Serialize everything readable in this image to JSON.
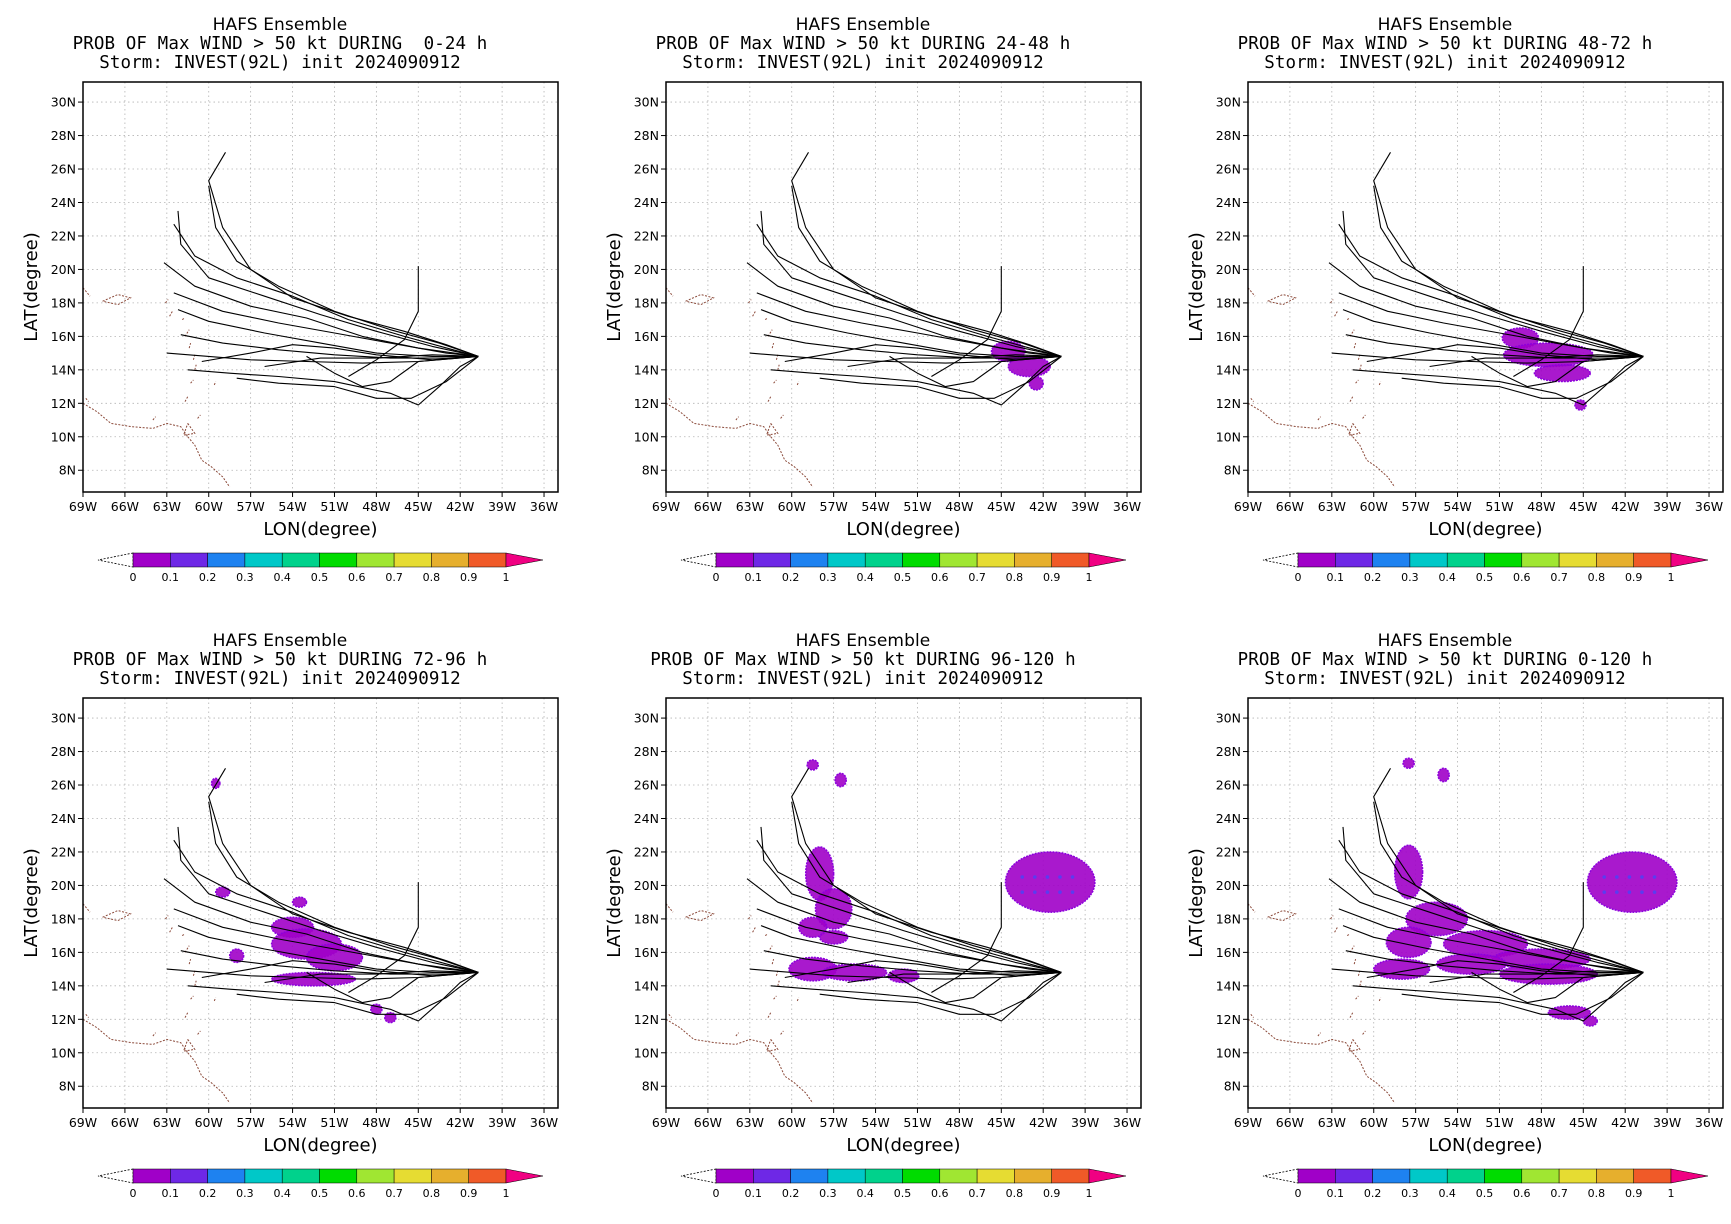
{
  "panels": [
    {
      "title": "HAFS Ensemble",
      "subtitle": "PROB OF Max WIND > 50 kt DURING  0-24 h",
      "storm": "Storm: INVEST(92L) init 2024090912"
    },
    {
      "title": "HAFS Ensemble",
      "subtitle": "PROB OF Max WIND > 50 kt DURING 24-48 h",
      "storm": "Storm: INVEST(92L) init 2024090912"
    },
    {
      "title": "HAFS Ensemble",
      "subtitle": "PROB OF Max WIND > 50 kt DURING 48-72 h",
      "storm": "Storm: INVEST(92L) init 2024090912"
    },
    {
      "title": "HAFS Ensemble",
      "subtitle": "PROB OF Max WIND > 50 kt DURING 72-96 h",
      "storm": "Storm: INVEST(92L) init 2024090912"
    },
    {
      "title": "HAFS Ensemble",
      "subtitle": "PROB OF Max WIND > 50 kt DURING 96-120 h",
      "storm": "Storm: INVEST(92L) init 2024090912"
    },
    {
      "title": "HAFS Ensemble",
      "subtitle": "PROB OF Max WIND > 50 kt DURING 0-120 h",
      "storm": "Storm: INVEST(92L) init 2024090912"
    }
  ],
  "axes": {
    "xlabel": "LON(degree)",
    "ylabel": "LAT(degree)",
    "lon_ticks": [
      "69W",
      "66W",
      "63W",
      "60W",
      "57W",
      "54W",
      "51W",
      "48W",
      "45W",
      "42W",
      "39W",
      "36W"
    ],
    "lat_ticks": [
      "8N",
      "10N",
      "12N",
      "14N",
      "16N",
      "18N",
      "20N",
      "22N",
      "24N",
      "26N",
      "28N",
      "30N"
    ],
    "lon_range": [
      -69,
      -35
    ],
    "lat_range": [
      6.7,
      31.2
    ]
  },
  "colorbar": {
    "labels": [
      "0",
      "0.1",
      "0.2",
      "0.3",
      "0.4",
      "0.5",
      "0.6",
      "0.7",
      "0.8",
      "0.9",
      "1"
    ],
    "colors": [
      "#a000c8",
      "#6e28e6",
      "#1e82f0",
      "#00c8c8",
      "#00d28c",
      "#00dc00",
      "#a0e632",
      "#e6dc32",
      "#e6af2d",
      "#f05a28",
      "#fa3c3c",
      "#f00082"
    ]
  },
  "chart_data": {
    "type": "map",
    "tracks_lonlat": [
      [
        [
          -58.8,
          27.0
        ],
        [
          -60.0,
          25.3
        ],
        [
          -59.0,
          22.5
        ],
        [
          -57.0,
          20.0
        ],
        [
          -54.0,
          18.3
        ],
        [
          -50.0,
          17.2
        ],
        [
          -46.0,
          16.3
        ],
        [
          -43.0,
          15.5
        ],
        [
          -40.7,
          14.8
        ]
      ],
      [
        [
          -60.0,
          25.0
        ],
        [
          -59.5,
          22.5
        ],
        [
          -58.0,
          20.5
        ],
        [
          -55.0,
          19.0
        ],
        [
          -51.0,
          17.5
        ],
        [
          -47.0,
          16.4
        ],
        [
          -43.5,
          15.6
        ],
        [
          -40.7,
          14.8
        ]
      ],
      [
        [
          -62.2,
          23.5
        ],
        [
          -62.0,
          21.5
        ],
        [
          -60.0,
          19.5
        ],
        [
          -56.0,
          18.4
        ],
        [
          -52.0,
          17.3
        ],
        [
          -48.0,
          16.3
        ],
        [
          -44.0,
          15.4
        ],
        [
          -40.7,
          14.8
        ]
      ],
      [
        [
          -62.5,
          22.7
        ],
        [
          -61.0,
          20.8
        ],
        [
          -58.0,
          19.5
        ],
        [
          -54.0,
          18.4
        ],
        [
          -50.0,
          17.0
        ],
        [
          -46.0,
          16.0
        ],
        [
          -42.5,
          15.2
        ],
        [
          -40.7,
          14.8
        ]
      ],
      [
        [
          -63.2,
          20.4
        ],
        [
          -61.0,
          19.0
        ],
        [
          -57.0,
          17.8
        ],
        [
          -53.0,
          17.1
        ],
        [
          -49.0,
          16.0
        ],
        [
          -45.0,
          15.3
        ],
        [
          -40.7,
          14.8
        ]
      ],
      [
        [
          -62.5,
          18.6
        ],
        [
          -59.0,
          17.5
        ],
        [
          -55.0,
          16.8
        ],
        [
          -51.0,
          16.2
        ],
        [
          -47.0,
          15.6
        ],
        [
          -43.0,
          15.0
        ],
        [
          -40.7,
          14.8
        ]
      ],
      [
        [
          -62.2,
          17.6
        ],
        [
          -60.0,
          16.9
        ],
        [
          -56.0,
          16.2
        ],
        [
          -52.0,
          15.6
        ],
        [
          -48.0,
          15.0
        ],
        [
          -44.0,
          14.8
        ],
        [
          -40.7,
          14.8
        ]
      ],
      [
        [
          -62.0,
          16.1
        ],
        [
          -59.0,
          15.6
        ],
        [
          -55.0,
          15.2
        ],
        [
          -51.0,
          14.9
        ],
        [
          -47.0,
          14.7
        ],
        [
          -43.0,
          14.7
        ],
        [
          -40.7,
          14.8
        ]
      ],
      [
        [
          -63.0,
          15.0
        ],
        [
          -60.0,
          14.8
        ],
        [
          -57.0,
          14.6
        ],
        [
          -53.0,
          14.5
        ],
        [
          -49.0,
          14.4
        ],
        [
          -45.0,
          14.5
        ],
        [
          -40.7,
          14.8
        ]
      ],
      [
        [
          -60.5,
          14.5
        ],
        [
          -57.0,
          15.0
        ],
        [
          -54.0,
          15.5
        ],
        [
          -51.0,
          15.3
        ],
        [
          -48.0,
          14.9
        ],
        [
          -44.0,
          14.6
        ],
        [
          -40.7,
          14.8
        ]
      ],
      [
        [
          -61.5,
          14.0
        ],
        [
          -58.5,
          13.8
        ],
        [
          -55.0,
          13.6
        ],
        [
          -51.0,
          13.3
        ],
        [
          -47.0,
          12.6
        ],
        [
          -45.0,
          11.9
        ],
        [
          -43.5,
          13.0
        ],
        [
          -42.0,
          14.2
        ],
        [
          -40.7,
          14.8
        ]
      ],
      [
        [
          -58.0,
          13.5
        ],
        [
          -55.0,
          13.2
        ],
        [
          -51.0,
          13.0
        ],
        [
          -48.0,
          12.3
        ],
        [
          -45.5,
          12.3
        ],
        [
          -43.0,
          13.3
        ],
        [
          -40.7,
          14.8
        ]
      ],
      [
        [
          -53.0,
          14.8
        ],
        [
          -51.0,
          13.8
        ],
        [
          -49.0,
          13.0
        ],
        [
          -47.0,
          13.3
        ],
        [
          -45.0,
          14.5
        ],
        [
          -40.7,
          14.8
        ]
      ],
      [
        [
          -45.0,
          20.2
        ],
        [
          -45.0,
          17.5
        ],
        [
          -46.0,
          15.8
        ],
        [
          -48.0,
          14.6
        ],
        [
          -50.0,
          13.6
        ]
      ],
      [
        [
          -56.0,
          14.2
        ],
        [
          -52.0,
          14.7
        ],
        [
          -48.0,
          14.7
        ],
        [
          -44.0,
          14.9
        ],
        [
          -40.7,
          14.8
        ]
      ]
    ],
    "prob_regions": [
      [],
      [
        [
          -44.5,
          15.1,
          1.2,
          0.6
        ],
        [
          -43.0,
          14.2,
          1.5,
          0.6
        ],
        [
          -42.5,
          13.2,
          0.5,
          0.4
        ]
      ],
      [
        [
          -49.5,
          15.9,
          1.3,
          0.6
        ],
        [
          -47.5,
          14.9,
          3.2,
          0.7
        ],
        [
          -46.5,
          13.8,
          2.0,
          0.5
        ],
        [
          -45.2,
          11.9,
          0.4,
          0.3
        ]
      ],
      [
        [
          -54.0,
          17.5,
          1.5,
          0.6
        ],
        [
          -53.0,
          16.5,
          2.5,
          0.9
        ],
        [
          -51.0,
          15.7,
          2.0,
          0.8
        ],
        [
          -58.0,
          15.8,
          0.5,
          0.4
        ],
        [
          -52.5,
          14.4,
          3.0,
          0.4
        ],
        [
          -48.0,
          12.6,
          0.4,
          0.3
        ],
        [
          -47.0,
          12.1,
          0.4,
          0.3
        ],
        [
          -53.5,
          19.0,
          0.5,
          0.3
        ],
        [
          -59.0,
          19.6,
          0.5,
          0.3
        ],
        [
          -59.5,
          26.1,
          0.3,
          0.3
        ]
      ],
      [
        [
          -58.0,
          20.7,
          1.0,
          1.6
        ],
        [
          -57.0,
          18.6,
          1.3,
          1.2
        ],
        [
          -58.5,
          17.5,
          1.0,
          0.6
        ],
        [
          -57.0,
          16.9,
          1.0,
          0.4
        ],
        [
          -58.5,
          15.0,
          1.7,
          0.7
        ],
        [
          -55.5,
          14.8,
          2.3,
          0.5
        ],
        [
          -52.0,
          14.6,
          1.1,
          0.4
        ],
        [
          -41.5,
          20.2,
          3.2,
          1.8
        ],
        [
          -58.5,
          27.2,
          0.4,
          0.3
        ],
        [
          -56.5,
          26.3,
          0.4,
          0.4
        ]
      ],
      [
        [
          -57.5,
          20.8,
          1.0,
          1.6
        ],
        [
          -55.5,
          18.0,
          2.2,
          1.0
        ],
        [
          -52.0,
          16.5,
          3.0,
          0.8
        ],
        [
          -48.0,
          15.6,
          3.5,
          0.6
        ],
        [
          -57.5,
          16.6,
          1.6,
          0.9
        ],
        [
          -53.0,
          15.3,
          2.5,
          0.6
        ],
        [
          -47.5,
          14.7,
          3.5,
          0.6
        ],
        [
          -58.0,
          15.0,
          2.0,
          0.6
        ],
        [
          -41.5,
          20.2,
          3.2,
          1.8
        ],
        [
          -46.0,
          12.4,
          1.5,
          0.4
        ],
        [
          -44.5,
          11.9,
          0.5,
          0.3
        ],
        [
          -57.5,
          27.3,
          0.4,
          0.3
        ],
        [
          -55.0,
          26.6,
          0.4,
          0.4
        ]
      ]
    ]
  }
}
